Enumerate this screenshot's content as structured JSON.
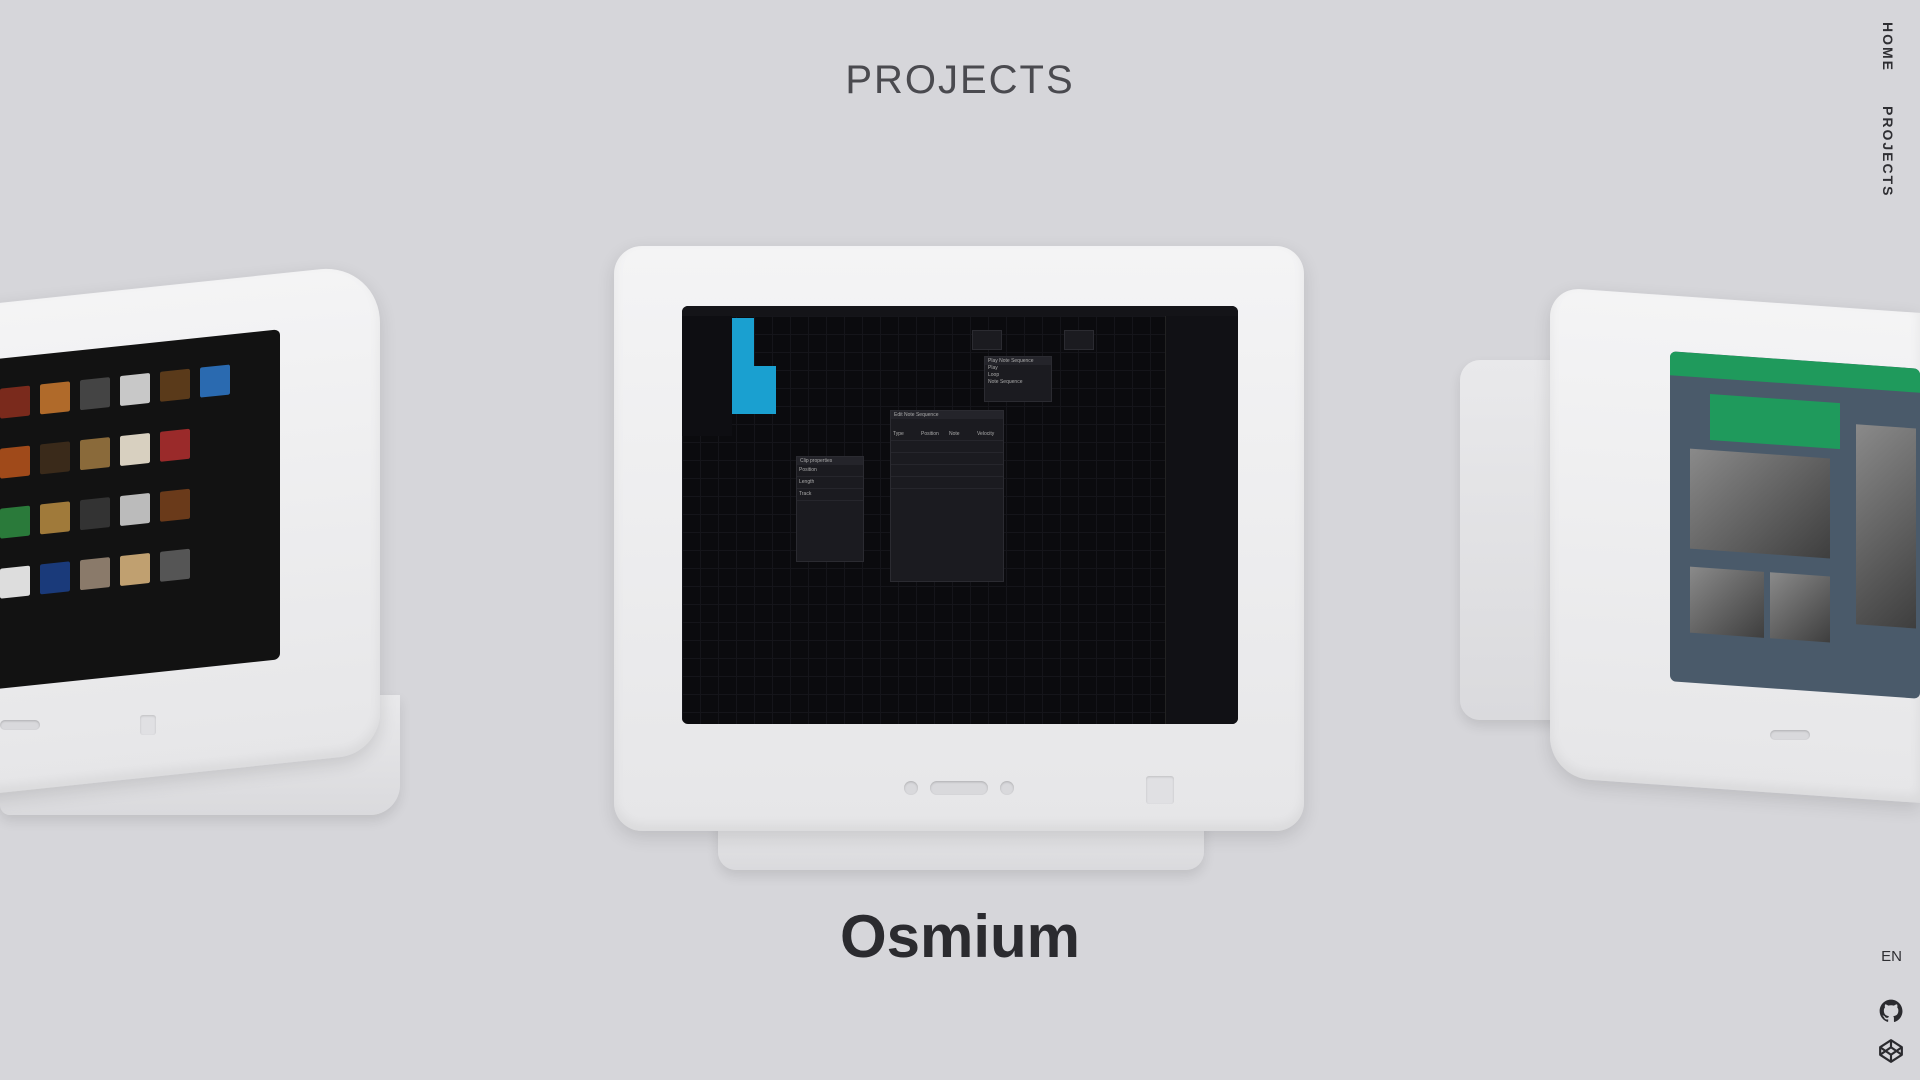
{
  "header": {
    "title": "PROJECTS"
  },
  "nav": {
    "items": [
      "HOME",
      "PROJECTS"
    ],
    "language": "EN"
  },
  "icons": {
    "github": "github-icon",
    "codepen": "codepen-icon"
  },
  "project": {
    "name": "Osmium"
  },
  "center_screen": {
    "app_title": "Osmium",
    "panel_sequencer": {
      "title": "Edit Note Sequence",
      "columns": [
        "Type",
        "Position",
        "Note",
        "Velocity"
      ]
    },
    "panel_node": {
      "title": "Play Note Sequence",
      "options": [
        "Play",
        "Loop",
        "Note Sequence"
      ]
    },
    "panel_clip": {
      "title": "Clip properties",
      "rows": [
        "Position",
        "Length",
        "Track"
      ]
    }
  },
  "colors": {
    "background": "#d6d6da",
    "accent_clip": "#1aa0d0",
    "site_green": "#1f9a5c"
  }
}
